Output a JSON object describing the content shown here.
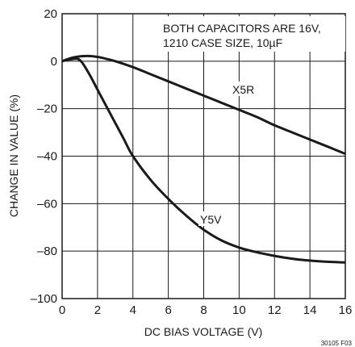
{
  "chart_data": {
    "type": "line",
    "title": "",
    "xlabel": "DC BIAS VOLTAGE (V)",
    "ylabel": "CHANGE IN VALUE (%)",
    "xlim": [
      0,
      16
    ],
    "ylim": [
      -100,
      20
    ],
    "xticks": [
      0,
      2,
      4,
      6,
      8,
      10,
      12,
      14,
      16
    ],
    "yticks": [
      20,
      0,
      -20,
      -40,
      -60,
      -80,
      -100
    ],
    "ytick_labels": [
      "20",
      "0",
      "–20",
      "–40",
      "–60",
      "–80",
      "–100"
    ],
    "grid": true,
    "legend": "none",
    "annotation": [
      "BOTH CAPACITORS ARE 16V,",
      "1210 CASE SIZE, 10µF"
    ],
    "figure_id": "30105 F03",
    "series": [
      {
        "name": "X5R",
        "x": [
          0,
          0.5,
          1,
          1.5,
          2,
          2.5,
          3,
          4,
          5,
          6,
          7,
          8,
          9,
          10,
          11,
          12,
          13,
          14,
          15,
          16
        ],
        "y": [
          0,
          1.3,
          2.0,
          2.2,
          1.8,
          1.0,
          0,
          -2.5,
          -5.5,
          -8.5,
          -11.5,
          -14.5,
          -17.5,
          -20.5,
          -23.5,
          -27,
          -30,
          -33,
          -36,
          -39
        ]
      },
      {
        "name": "Y5V",
        "x": [
          0,
          0.5,
          1,
          1.5,
          2,
          2.5,
          3,
          3.5,
          4,
          5,
          6,
          7,
          8,
          9,
          10,
          11,
          12,
          13,
          14,
          15,
          16
        ],
        "y": [
          0,
          0.8,
          0.5,
          -5,
          -12,
          -19,
          -26,
          -33,
          -40,
          -50,
          -58,
          -65,
          -71,
          -75.5,
          -78.5,
          -80.5,
          -82,
          -83.2,
          -84,
          -84.5,
          -84.8
        ]
      }
    ]
  }
}
